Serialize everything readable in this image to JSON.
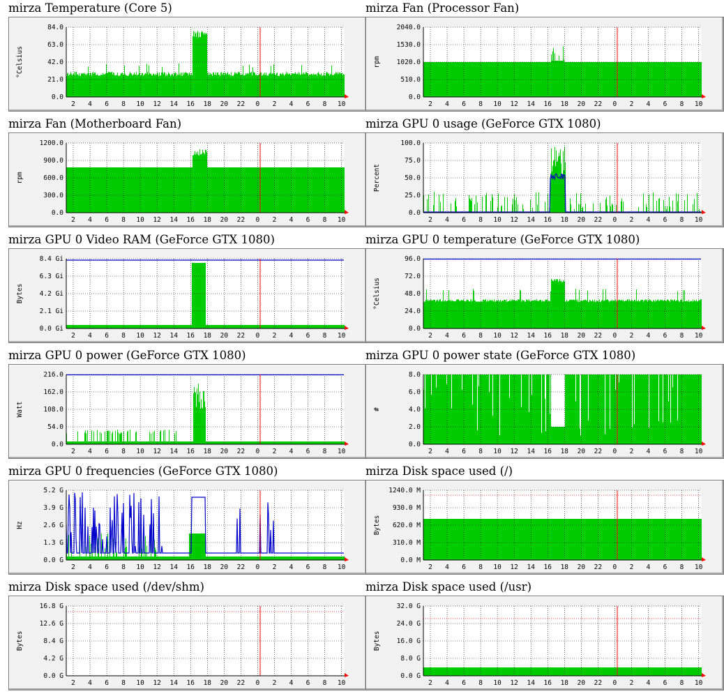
{
  "colors": {
    "area": "#00cc00",
    "line": "#0000cc",
    "now": "#ff0000",
    "grid": "#000000",
    "bg": "#f1f1f1",
    "plot": "#ffffff"
  },
  "charts": [
    {
      "title": "mirza Temperature (Core 5)",
      "ylabel": "°Celsius",
      "yticks": [
        "84.0",
        "63.0",
        "42.0",
        "21.0",
        "0.0"
      ],
      "top": "84.0"
    },
    {
      "title": "mirza Fan (Processor Fan)",
      "ylabel": "rpm",
      "yticks": [
        "2040.0",
        "1530.0",
        "1020.0",
        "510.0",
        "0.0"
      ],
      "top": "2040.0"
    },
    {
      "title": "mirza Fan (Motherboard Fan)",
      "ylabel": "rpm",
      "yticks": [
        "1200.0",
        "900.0",
        "600.0",
        "300.0",
        "0.0"
      ],
      "top": "1200.0"
    },
    {
      "title": "mirza GPU 0 usage (GeForce GTX 1080)",
      "ylabel": "Percent",
      "yticks": [
        "100.0",
        "75.0",
        "50.0",
        "25.0",
        "0.0"
      ],
      "top": "100.0"
    },
    {
      "title": "mirza GPU 0 Video RAM (GeForce GTX 1080)",
      "ylabel": "Bytes",
      "yticks": [
        "8.4 Gi",
        "6.3 Gi",
        "4.2 Gi",
        "2.1 Gi",
        "0.0 Gi"
      ],
      "top": "8.4 Gi"
    },
    {
      "title": "mirza GPU 0 temperature (GeForce GTX 1080)",
      "ylabel": "°Celsius",
      "yticks": [
        "96.0",
        "72.0",
        "48.0",
        "24.0",
        "0.0"
      ],
      "top": "96.0"
    },
    {
      "title": "mirza GPU 0 power (GeForce GTX 1080)",
      "ylabel": "Watt",
      "yticks": [
        "216.0",
        "162.0",
        "108.0",
        "54.0",
        "0.0"
      ],
      "top": "216.0"
    },
    {
      "title": "mirza GPU 0 power state (GeForce GTX 1080)",
      "ylabel": "#",
      "yticks": [
        "8.0",
        "6.0",
        "4.0",
        "2.0",
        "0.0"
      ],
      "top": "8.0"
    },
    {
      "title": "mirza GPU 0 frequencies (GeForce GTX 1080)",
      "ylabel": "Hz",
      "yticks": [
        "5.2 G",
        "3.9 G",
        "2.6 G",
        "1.3 G",
        "0.0 G"
      ],
      "top": "5.2 G"
    },
    {
      "title": "mirza Disk space used (/)",
      "ylabel": "Bytes",
      "yticks": [
        "1240.0 M",
        "930.0 M",
        "620.0 M",
        "310.0 M",
        "0.0 M"
      ],
      "top": "1240.0 M"
    },
    {
      "title": "mirza Disk space used (/dev/shm)",
      "ylabel": "Bytes",
      "yticks": [
        "16.8 G",
        "12.6 G",
        "8.4 G",
        "4.2 G",
        "0.0 G"
      ],
      "top": "16.8 G"
    },
    {
      "title": "mirza Disk space used (/usr)",
      "ylabel": "Bytes",
      "yticks": [
        "32.0 G",
        "24.0 G",
        "16.0 G",
        "8.0 G",
        "0.0 G"
      ],
      "top": "32.0 G"
    }
  ],
  "xticks": [
    "2",
    "4",
    "6",
    "8",
    "10",
    "12",
    "14",
    "16",
    "18",
    "20",
    "22",
    "0",
    "2",
    "4",
    "6",
    "8",
    "10"
  ]
}
